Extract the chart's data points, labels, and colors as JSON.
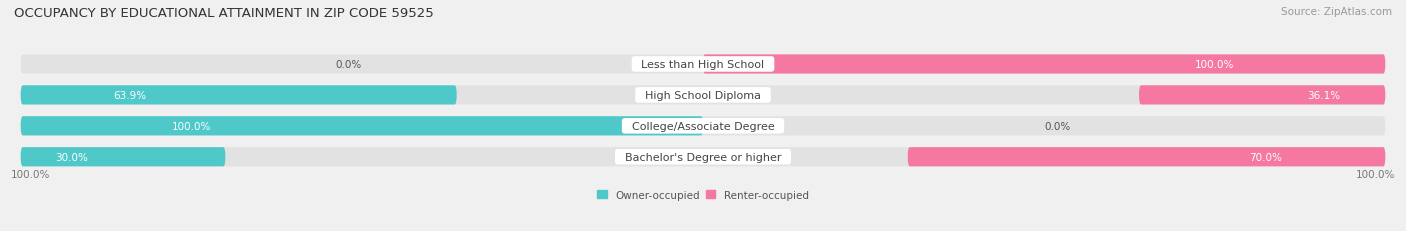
{
  "title": "OCCUPANCY BY EDUCATIONAL ATTAINMENT IN ZIP CODE 59525",
  "source": "Source: ZipAtlas.com",
  "categories": [
    "Less than High School",
    "High School Diploma",
    "College/Associate Degree",
    "Bachelor's Degree or higher"
  ],
  "owner_values": [
    0.0,
    63.9,
    100.0,
    30.0
  ],
  "renter_values": [
    100.0,
    36.1,
    0.0,
    70.0
  ],
  "owner_color": "#4EC8C8",
  "renter_color": "#F478A0",
  "background_color": "#f0f0f0",
  "bar_bg_color": "#e2e2e2",
  "bar_bg_color_light": "#ebebeb",
  "title_fontsize": 9.5,
  "source_fontsize": 7.5,
  "label_fontsize": 8,
  "bar_label_fontsize": 7.5,
  "legend_label_owner": "Owner-occupied",
  "legend_label_renter": "Renter-occupied",
  "axis_label_left": "100.0%",
  "axis_label_right": "100.0%"
}
